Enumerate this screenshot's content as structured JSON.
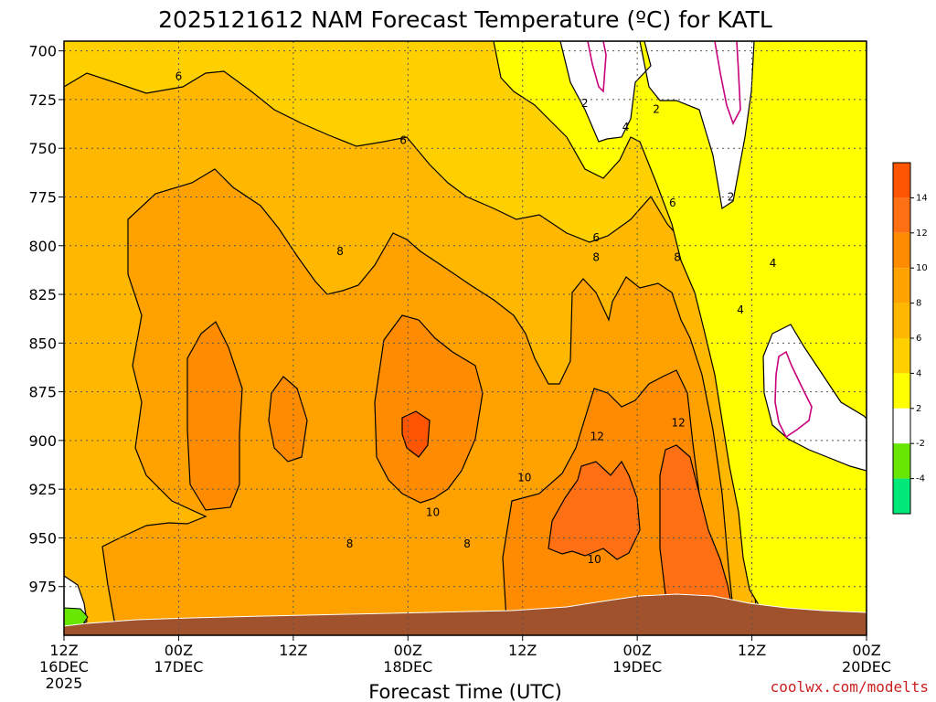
{
  "chart_data": {
    "type": "contour",
    "title": "2025121612 NAM Forecast Temperature (ºC) for KATL",
    "xlabel": "Forecast Time (UTC)",
    "ylabel": "",
    "x_tick_labels": [
      [
        "12Z",
        "16DEC",
        "2025"
      ],
      [
        "00Z",
        "17DEC"
      ],
      [
        "12Z"
      ],
      [
        "00Z",
        "18DEC"
      ],
      [
        "12Z"
      ],
      [
        "00Z",
        "19DEC"
      ],
      [
        "12Z"
      ],
      [
        "00Z",
        "20DEC"
      ]
    ],
    "x_tick_hours": [
      0,
      12,
      24,
      36,
      48,
      60,
      72,
      84
    ],
    "xlim_hours": [
      0,
      84
    ],
    "y_tick_labels": [
      "700",
      "725",
      "750",
      "775",
      "800",
      "825",
      "850",
      "875",
      "900",
      "925",
      "950",
      "975"
    ],
    "y_ticks_hpa": [
      700,
      725,
      750,
      775,
      800,
      825,
      850,
      875,
      900,
      925,
      950,
      975
    ],
    "ylim_hpa": [
      695,
      1000
    ],
    "grid": true,
    "colorbar": {
      "labels": [
        "14",
        "12",
        "10",
        "8",
        "6",
        "4",
        "2",
        "-2",
        "-4"
      ],
      "colors": [
        "#ff5500",
        "#ff6f13",
        "#ff8c00",
        "#ffa200",
        "#ffb700",
        "#ffd000",
        "#ffff00",
        "#ffffff",
        "#66e600",
        "#00e77a"
      ]
    },
    "contour_labels": [
      {
        "text": "6",
        "t": 12.0,
        "p": 713
      },
      {
        "text": "6",
        "t": 35.5,
        "p": 746
      },
      {
        "text": "2",
        "t": 54.5,
        "p": 727
      },
      {
        "text": "4",
        "t": 58.8,
        "p": 739
      },
      {
        "text": "2",
        "t": 62.0,
        "p": 730
      },
      {
        "text": "2",
        "t": 69.8,
        "p": 775
      },
      {
        "text": "6",
        "t": 63.7,
        "p": 778
      },
      {
        "text": "6",
        "t": 55.7,
        "p": 796
      },
      {
        "text": "8",
        "t": 28.9,
        "p": 803
      },
      {
        "text": "8",
        "t": 55.7,
        "p": 806
      },
      {
        "text": "8",
        "t": 64.2,
        "p": 806
      },
      {
        "text": "4",
        "t": 74.2,
        "p": 809
      },
      {
        "text": "4",
        "t": 70.8,
        "p": 833
      },
      {
        "text": "12",
        "t": 55.8,
        "p": 898
      },
      {
        "text": "12",
        "t": 64.3,
        "p": 891
      },
      {
        "text": "10",
        "t": 48.2,
        "p": 919
      },
      {
        "text": "10",
        "t": 38.6,
        "p": 937
      },
      {
        "text": "8",
        "t": 29.9,
        "p": 953
      },
      {
        "text": "8",
        "t": 42.2,
        "p": 953
      },
      {
        "text": "10",
        "t": 55.5,
        "p": 961
      }
    ]
  },
  "credit": "coolwx.com/modelts"
}
